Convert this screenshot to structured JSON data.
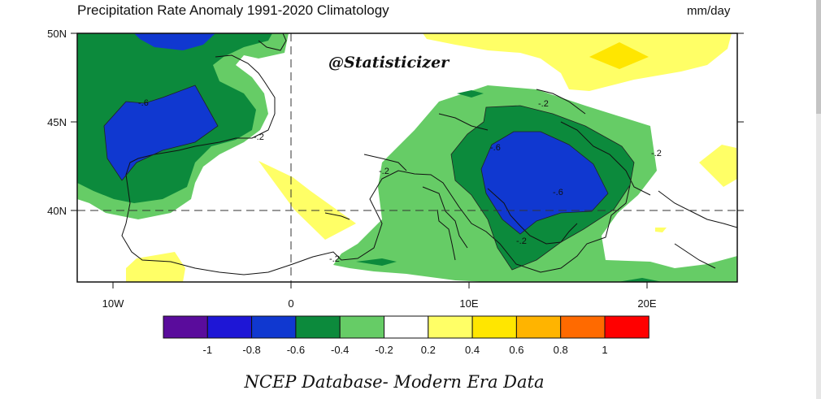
{
  "title": "Precipitation Rate Anomaly  1991-2020 Climatology",
  "units": "mm/day",
  "watermark": "@Statisticizer",
  "footer": "NCEP Database- Modern Era Data",
  "map": {
    "lat_labels": [
      "50N",
      "45N",
      "40N"
    ],
    "lon_labels": [
      "10W",
      "0",
      "10E",
      "20E"
    ],
    "contour_labels": [
      "-.6",
      "-.2",
      "-.2",
      "-.2",
      "-.6",
      "-.2",
      "-.2",
      "-.2",
      "-.6"
    ]
  },
  "colorbar": {
    "labels": [
      "-1",
      "-0.8",
      "-0.6",
      "-0.4",
      "-0.2",
      "0.2",
      "0.4",
      "0.6",
      "0.8",
      "1"
    ],
    "colors": [
      "#5a0c9c",
      "#1e16d6",
      "#1038d0",
      "#0c8a3c",
      "#66cc66",
      "#ffffff",
      "#ffff66",
      "#ffe600",
      "#ffb400",
      "#ff6a00",
      "#ff0000"
    ]
  },
  "colors": {
    "green_dark": "#0c8a3c",
    "green_light": "#66cc66",
    "blue": "#1038d0",
    "yellow": "#ffff66"
  }
}
